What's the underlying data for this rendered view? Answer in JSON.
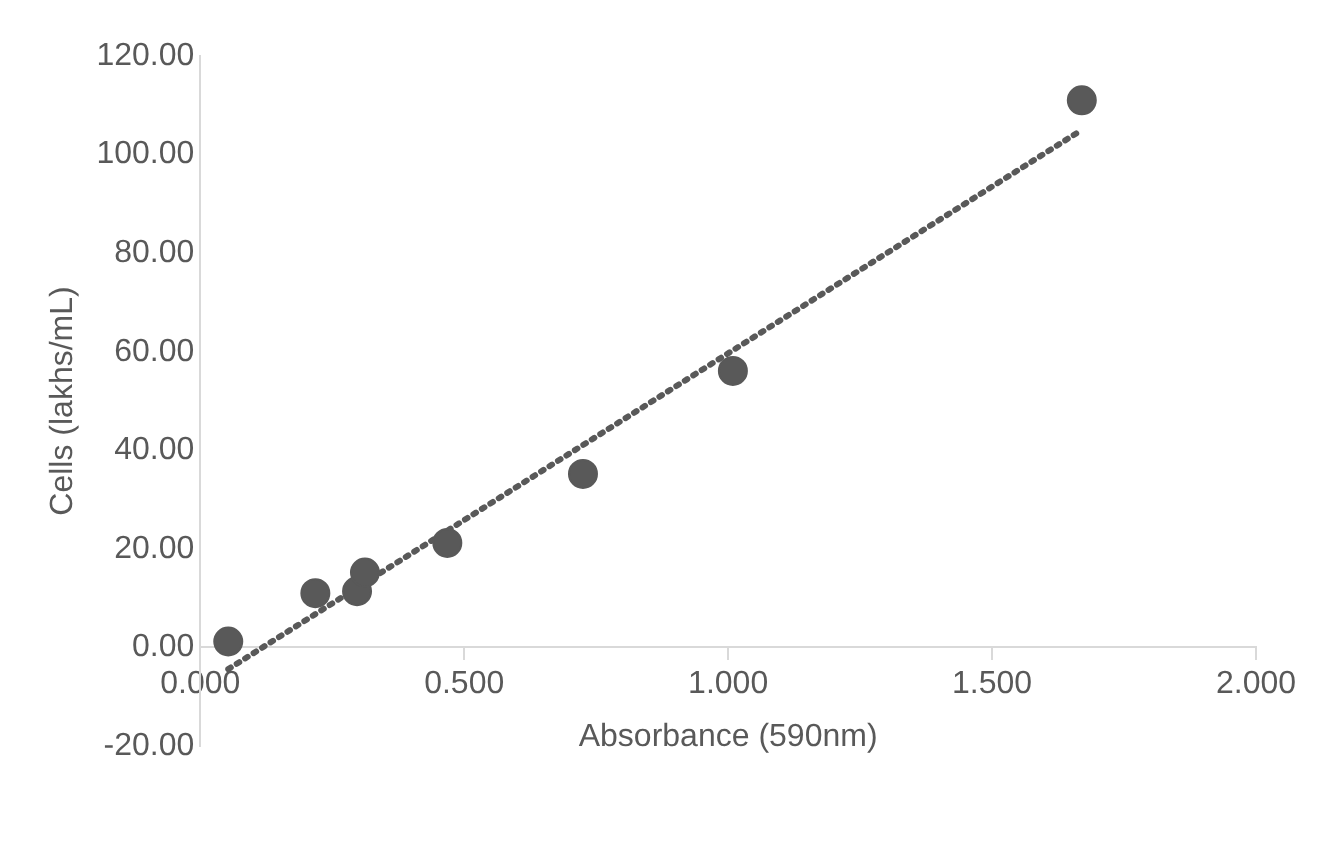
{
  "chart_data": {
    "type": "scatter",
    "xlabel": "Absorbance (590nm)",
    "ylabel": "Cells (lakhs/mL)",
    "x": [
      0.053,
      0.218,
      0.297,
      0.312,
      0.468,
      0.725,
      1.009,
      1.67
    ],
    "series": [
      {
        "color": "#595959",
        "values": [
          1.2,
          11,
          11.4,
          15.2,
          21.2,
          35.2,
          56.1,
          111
        ]
      },
      {
        "type": "line",
        "color": "#595959",
        "line_style": "dotted",
        "marker": "none",
        "x": [
          0.053,
          1.664
        ],
        "values": [
          -4.4,
          104.6
        ]
      }
    ],
    "marker": "circle",
    "xlim": [
      0,
      2
    ],
    "xticks": [
      {
        "value": 0,
        "label": "0.000"
      },
      {
        "value": 0.5,
        "label": "0.500"
      },
      {
        "value": 1,
        "label": "1.000"
      },
      {
        "value": 1.5,
        "label": "1.500"
      },
      {
        "value": 2,
        "label": "2.000"
      }
    ],
    "ylim": [
      -20,
      120
    ],
    "yticks": [
      {
        "value": -20,
        "label": "-20.00"
      },
      {
        "value": 0,
        "label": "0.00"
      },
      {
        "value": 20,
        "label": "20.00"
      },
      {
        "value": 40,
        "label": "40.00"
      },
      {
        "value": 60,
        "label": "60.00"
      },
      {
        "value": 80,
        "label": "80.00"
      },
      {
        "value": 100,
        "label": "100.00"
      },
      {
        "value": 120,
        "label": "120.00"
      }
    ],
    "grid": false,
    "legend": false
  }
}
